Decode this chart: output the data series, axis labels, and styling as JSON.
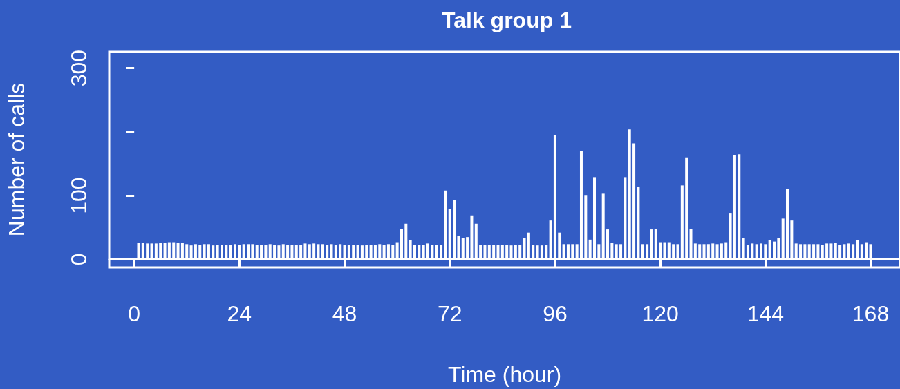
{
  "chart_data": {
    "type": "bar",
    "title": "Talk group 1",
    "xlabel": "Time (hour)",
    "ylabel": "Number of calls",
    "xlim": [
      -5.7,
      174.7
    ],
    "ylim": [
      -12.5,
      325.5
    ],
    "xticks": [
      0,
      24,
      48,
      72,
      96,
      120,
      144,
      168
    ],
    "yticks": [
      0,
      100,
      {
        "value": 200,
        "label": null
      },
      300
    ],
    "series": [
      {
        "color": "#ffffff",
        "x": [
          1,
          2,
          3,
          4,
          5,
          6,
          7,
          8,
          9,
          10,
          11,
          12,
          13,
          14,
          15,
          16,
          17,
          18,
          19,
          20,
          21,
          22,
          23,
          24,
          25,
          26,
          27,
          28,
          29,
          30,
          31,
          32,
          33,
          34,
          35,
          36,
          37,
          38,
          39,
          40,
          41,
          42,
          43,
          44,
          45,
          46,
          47,
          48,
          49,
          50,
          51,
          52,
          53,
          54,
          55,
          56,
          57,
          58,
          59,
          60,
          61,
          62,
          63,
          64,
          65,
          66,
          67,
          68,
          69,
          70,
          71,
          72,
          73,
          74,
          75,
          76,
          77,
          78,
          79,
          80,
          81,
          82,
          83,
          84,
          85,
          86,
          87,
          88,
          89,
          90,
          91,
          92,
          93,
          94,
          95,
          96,
          97,
          98,
          99,
          100,
          101,
          102,
          103,
          104,
          105,
          106,
          107,
          108,
          109,
          110,
          111,
          112,
          113,
          114,
          115,
          116,
          117,
          118,
          119,
          120,
          121,
          122,
          123,
          124,
          125,
          126,
          127,
          128,
          129,
          130,
          131,
          132,
          133,
          134,
          135,
          136,
          137,
          138,
          139,
          140,
          141,
          142,
          143,
          144,
          145,
          146,
          147,
          148,
          149,
          150,
          151,
          152,
          153,
          154,
          155,
          156,
          157,
          158,
          159,
          160,
          161,
          162,
          163,
          164,
          165,
          166,
          167,
          168
        ],
        "values": [
          26,
          26,
          25,
          25,
          25,
          26,
          26,
          27,
          27,
          26,
          26,
          24,
          22,
          24,
          23,
          24,
          24,
          22,
          23,
          23,
          23,
          23,
          24,
          23,
          24,
          24,
          24,
          23,
          23,
          23,
          24,
          23,
          22,
          24,
          23,
          23,
          23,
          23,
          25,
          24,
          25,
          24,
          24,
          23,
          24,
          23,
          24,
          23,
          23,
          23,
          23,
          22,
          23,
          23,
          23,
          24,
          23,
          24,
          23,
          27,
          48,
          56,
          30,
          23,
          23,
          23,
          25,
          23,
          23,
          23,
          108,
          79,
          93,
          37,
          34,
          35,
          69,
          56,
          23,
          23,
          23,
          23,
          23,
          23,
          23,
          22,
          23,
          23,
          34,
          42,
          23,
          22,
          22,
          23,
          61,
          195,
          42,
          24,
          24,
          24,
          24,
          170,
          101,
          31,
          129,
          24,
          103,
          47,
          26,
          24,
          24,
          129,
          204,
          182,
          114,
          24,
          24,
          47,
          48,
          27,
          27,
          27,
          24,
          24,
          116,
          160,
          48,
          25,
          24,
          24,
          24,
          25,
          24,
          25,
          27,
          73,
          163,
          165,
          34,
          23,
          25,
          24,
          25,
          24,
          30,
          28,
          34,
          64,
          111,
          61,
          25,
          24,
          24,
          24,
          24,
          24,
          23,
          25,
          25,
          26,
          23,
          24,
          25,
          24,
          30,
          24,
          27,
          24
        ]
      }
    ]
  }
}
